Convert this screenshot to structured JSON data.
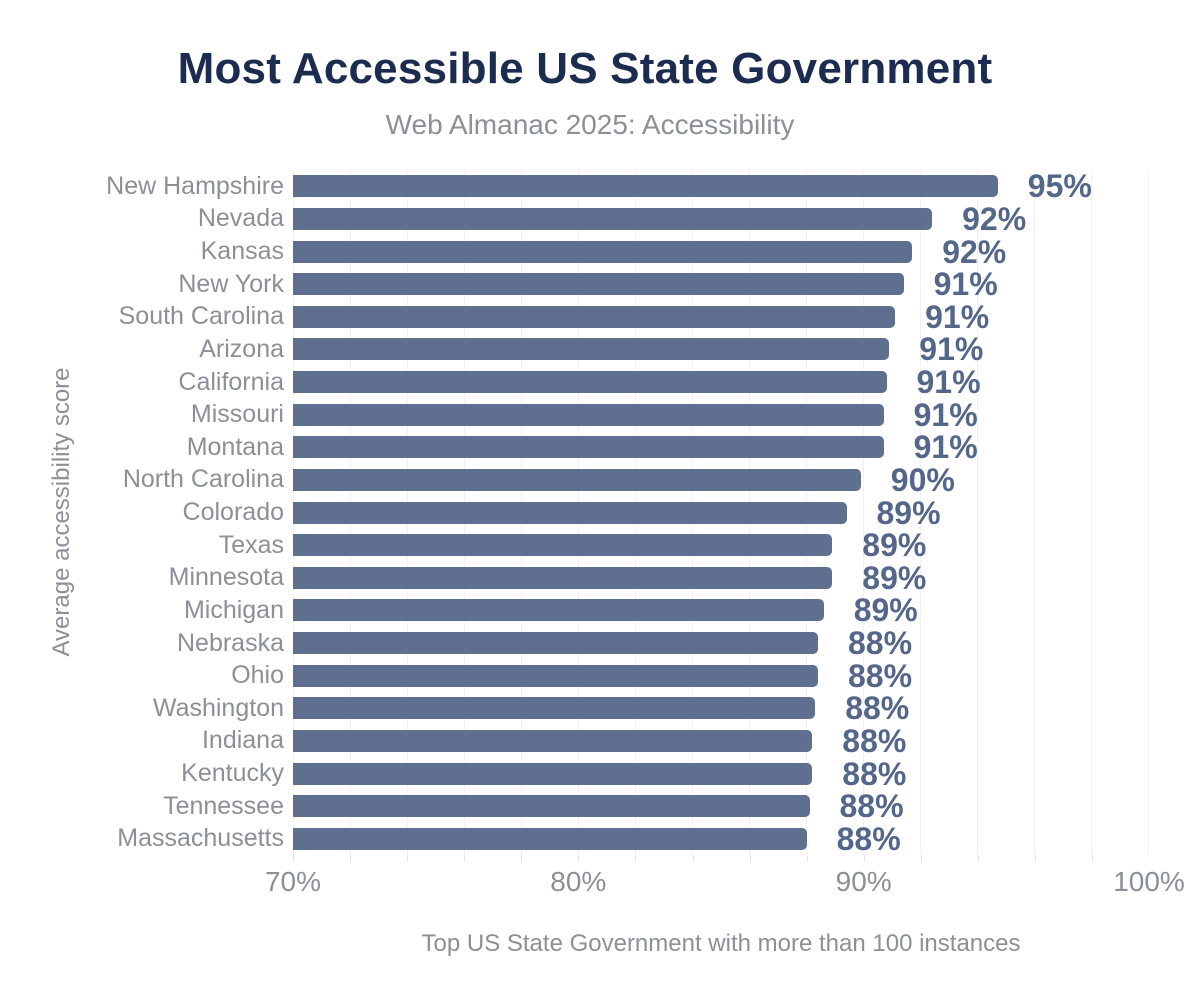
{
  "page": {
    "background": "#ffffff"
  },
  "chart_data": {
    "type": "bar",
    "orientation": "horizontal",
    "title": "Most Accessible US State Government",
    "subtitle": "Web Almanac 2025: Accessibility",
    "ylabel": "Average accessibility score",
    "xlabel": "Top US State Government with more than 100 instances",
    "xlim": [
      70,
      100
    ],
    "x_ticks": [
      "70%",
      "80%",
      "90%",
      "100%"
    ],
    "x_tick_values": [
      70,
      80,
      90,
      100
    ],
    "grid": {
      "vertical_minor_step_pct": 2,
      "on": true
    },
    "legend": "none",
    "categories": [
      "New Hampshire",
      "Nevada",
      "Kansas",
      "New York",
      "South Carolina",
      "Arizona",
      "California",
      "Missouri",
      "Montana",
      "North Carolina",
      "Colorado",
      "Texas",
      "Minnesota",
      "Michigan",
      "Nebraska",
      "Ohio",
      "Washington",
      "Indiana",
      "Kentucky",
      "Tennessee",
      "Massachusetts"
    ],
    "values": [
      95,
      92,
      92,
      91,
      91,
      91,
      91,
      91,
      91,
      90,
      89,
      89,
      89,
      89,
      88,
      88,
      88,
      88,
      88,
      88,
      88
    ],
    "value_labels": [
      "95%",
      "92%",
      "92%",
      "91%",
      "91%",
      "91%",
      "91%",
      "91%",
      "91%",
      "90%",
      "89%",
      "89%",
      "89%",
      "89%",
      "88%",
      "88%",
      "88%",
      "88%",
      "88%",
      "88%",
      "88%"
    ],
    "bar_lengths_pct_estimate": [
      94.7,
      92.4,
      91.7,
      91.4,
      91.1,
      90.9,
      90.8,
      90.7,
      90.7,
      89.9,
      89.4,
      88.9,
      88.9,
      88.6,
      88.4,
      88.4,
      88.3,
      88.2,
      88.2,
      88.1,
      88.0
    ],
    "colors": {
      "bar": "#5e6f8f",
      "value_label": "#54678a",
      "category_label": "#8b9098",
      "title": "#1c2b50",
      "subtitle": "#8b9098",
      "axis_label": "#8b9098",
      "tick_label": "#8b9098",
      "gridline": "#f0f1f3",
      "tick_mark": "#e2e4e8",
      "background": "#ffffff"
    }
  }
}
